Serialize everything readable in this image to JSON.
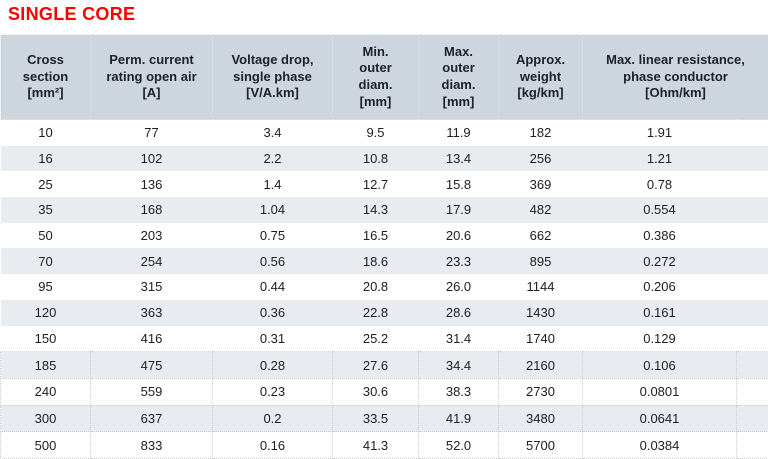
{
  "title": "SINGLE CORE",
  "colors": {
    "title_red": "#ff0000",
    "header_bg": "#cdd5df",
    "row_stripe": "#e8ebf0",
    "row_border_dotted": "#c9ced6",
    "header_border_dotted": "#dfe5ec",
    "header_text": "#1d1f2a",
    "body_text": "#202020"
  },
  "table": {
    "headers": [
      "Cross\nsection\n[mm²]",
      "Perm. current\nrating open air\n[A]",
      "Voltage drop,\nsingle phase\n[V/A.km]",
      "Min.\nouter\ndiam.\n[mm]",
      "Max.\nouter\ndiam.\n[mm]",
      "Approx.\nweight\n[kg/km]",
      "Max. linear resistance,\nphase conductor\n[Ohm/km]"
    ],
    "rows": [
      [
        "10",
        "77",
        "3.4",
        "9.5",
        "11.9",
        "182",
        "1.91"
      ],
      [
        "16",
        "102",
        "2.2",
        "10.8",
        "13.4",
        "256",
        "1.21"
      ],
      [
        "25",
        "136",
        "1.4",
        "12.7",
        "15.8",
        "369",
        "0.78"
      ],
      [
        "35",
        "168",
        "1.04",
        "14.3",
        "17.9",
        "482",
        "0.554"
      ],
      [
        "50",
        "203",
        "0.75",
        "16.5",
        "20.6",
        "662",
        "0.386"
      ],
      [
        "70",
        "254",
        "0.56",
        "18.6",
        "23.3",
        "895",
        "0.272"
      ],
      [
        "95",
        "315",
        "0.44",
        "20.8",
        "26.0",
        "1144",
        "0.206"
      ],
      [
        "120",
        "363",
        "0.36",
        "22.8",
        "28.6",
        "1430",
        "0.161"
      ],
      [
        "150",
        "416",
        "0.31",
        "25.2",
        "31.4",
        "1740",
        "0.129"
      ],
      [
        "185",
        "475",
        "0.28",
        "27.6",
        "34.4",
        "2160",
        "0.106"
      ],
      [
        "240",
        "559",
        "0.23",
        "30.6",
        "38.3",
        "2730",
        "0.0801"
      ],
      [
        "300",
        "637",
        "0.2",
        "33.5",
        "41.9",
        "3480",
        "0.0641"
      ],
      [
        "500",
        "833",
        "0.16",
        "41.3",
        "52.0",
        "5700",
        "0.0384"
      ]
    ],
    "style": {
      "bordered_from_row": 9
    }
  }
}
